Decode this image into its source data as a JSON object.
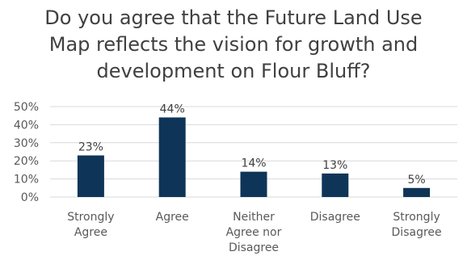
{
  "chart_data": {
    "type": "bar",
    "title_lines": [
      "Do you agree that the Future Land Use",
      "Map reflects the vision for growth and",
      "development on Flour Bluff?"
    ],
    "categories": [
      [
        "Strongly",
        "Agree"
      ],
      [
        "Agree"
      ],
      [
        "Neither",
        "Agree nor",
        "Disagree"
      ],
      [
        "Disagree"
      ],
      [
        "Strongly",
        "Disagree"
      ]
    ],
    "values": [
      23,
      44,
      14,
      13,
      5
    ],
    "data_labels": [
      "23%",
      "44%",
      "14%",
      "13%",
      "5%"
    ],
    "y_ticks": [
      0,
      10,
      20,
      30,
      40,
      50
    ],
    "y_tick_labels": [
      "0%",
      "10%",
      "20%",
      "30%",
      "40%",
      "50%"
    ],
    "ylim": [
      0,
      50
    ],
    "grid": true,
    "bar_color": "#0E3558",
    "grid_color": "#D9D9D9"
  }
}
